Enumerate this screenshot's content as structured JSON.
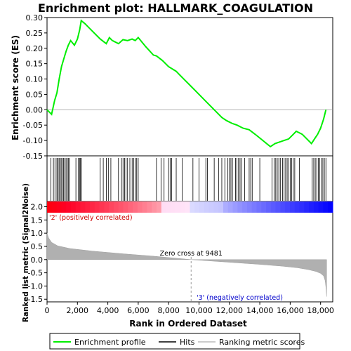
{
  "chart_data": {
    "type": "line",
    "title": "Enrichment plot: HALLMARK_COAGULATION",
    "xlabel": "Rank in Ordered Dataset",
    "ylabel_es": "Enrichment score (ES)",
    "ylabel_metric": "Ranked list metric (Signal2Noise)",
    "xlim": [
      0,
      18800
    ],
    "es_ylim": [
      -0.15,
      0.3
    ],
    "metric_ylim": [
      -1.6,
      2.2
    ],
    "x_ticks": [
      0,
      2000,
      4000,
      6000,
      8000,
      10000,
      12000,
      14000,
      16000,
      18000
    ],
    "x_tick_labels": [
      "0",
      "2,000",
      "4,000",
      "6,000",
      "8,000",
      "10,000",
      "12,000",
      "14,000",
      "16,000",
      "18,000"
    ],
    "es_ticks": [
      -0.15,
      -0.1,
      -0.05,
      0.0,
      0.05,
      0.1,
      0.15,
      0.2,
      0.25,
      0.3
    ],
    "es_tick_labels": [
      "-0.15",
      "-0.10",
      "-0.05",
      "0.00",
      "0.05",
      "0.10",
      "0.15",
      "0.20",
      "0.25",
      "0.30"
    ],
    "metric_ticks": [
      -1.5,
      -1.0,
      -0.5,
      0.0,
      0.5,
      1.0,
      1.5,
      2.0
    ],
    "metric_tick_labels": [
      "-1.5",
      "-1.0",
      "-0.5",
      "0.0",
      "0.5",
      "1.0",
      "1.5",
      "2.0"
    ],
    "enrichment_profile": {
      "x": [
        0,
        300,
        500,
        650,
        800,
        950,
        1100,
        1250,
        1400,
        1550,
        1800,
        2000,
        2150,
        2250,
        2500,
        3000,
        3500,
        3900,
        4100,
        4300,
        4700,
        5000,
        5300,
        5600,
        5800,
        6000,
        6500,
        7000,
        7200,
        7600,
        8000,
        8500,
        9000,
        9500,
        10000,
        10500,
        11000,
        11500,
        11800,
        12200,
        12500,
        12900,
        13300,
        13700,
        14200,
        14700,
        15000,
        15300,
        15600,
        15900,
        16200,
        16400,
        16800,
        17100,
        17400,
        17600,
        17800,
        18000,
        18200,
        18350
      ],
      "y": [
        0.0,
        -0.015,
        0.03,
        0.055,
        0.1,
        0.14,
        0.165,
        0.19,
        0.21,
        0.225,
        0.21,
        0.23,
        0.26,
        0.29,
        0.28,
        0.255,
        0.23,
        0.215,
        0.235,
        0.225,
        0.215,
        0.228,
        0.225,
        0.23,
        0.225,
        0.235,
        0.205,
        0.178,
        0.175,
        0.16,
        0.14,
        0.125,
        0.1,
        0.075,
        0.05,
        0.025,
        0.0,
        -0.025,
        -0.035,
        -0.045,
        -0.05,
        -0.06,
        -0.065,
        -0.08,
        -0.1,
        -0.12,
        -0.11,
        -0.105,
        -0.1,
        -0.095,
        -0.08,
        -0.07,
        -0.08,
        -0.095,
        -0.11,
        -0.095,
        -0.08,
        -0.06,
        -0.03,
        0.0
      ]
    },
    "hits_x": [
      250,
      420,
      520,
      650,
      720,
      790,
      860,
      930,
      1000,
      1080,
      1160,
      1250,
      1330,
      1400,
      1470,
      1900,
      2050,
      2150,
      2200,
      2260,
      3500,
      3700,
      3900,
      4050,
      4200,
      4700,
      4900,
      5000,
      5100,
      5200,
      5300,
      5450,
      5600,
      5700,
      5800,
      5900,
      6000,
      7200,
      7500,
      7700,
      8000,
      8100,
      8200,
      8500,
      8900,
      9600,
      10000,
      10450,
      10550,
      11000,
      11300,
      11500,
      11700,
      11900,
      12000,
      12100,
      12200,
      12400,
      12500,
      12600,
      12700,
      12800,
      13000,
      13300,
      13400,
      13500,
      14000,
      14800,
      14950,
      15050,
      15150,
      15250,
      15350,
      15500,
      15600,
      15700,
      15800,
      15900,
      16000,
      16100,
      16200,
      16300,
      16600,
      17450,
      17550,
      17650,
      17750,
      17850,
      17950,
      18050,
      18150,
      18250,
      18350
    ],
    "zero_cross_rank": 9481,
    "metric_profile": {
      "x": [
        0,
        100,
        300,
        700,
        1500,
        3000,
        5000,
        7000,
        9481,
        12000,
        14000,
        15500,
        16500,
        17200,
        17700,
        18000,
        18200,
        18300,
        18350,
        18400
      ],
      "y": [
        1.0,
        0.82,
        0.65,
        0.52,
        0.42,
        0.32,
        0.22,
        0.13,
        0.0,
        -0.1,
        -0.18,
        -0.25,
        -0.31,
        -0.38,
        -0.45,
        -0.52,
        -0.62,
        -0.8,
        -1.05,
        -1.4
      ]
    }
  },
  "annotations": {
    "zero_cross": "Zero cross at 9481",
    "positive": "'2' (positively correlated)",
    "negative": "'3' (negatively correlated)"
  },
  "legend": [
    "Enrichment profile",
    "Hits",
    "Ranking metric scores"
  ],
  "colors": {
    "profile": "#00ee00",
    "positive": "#ff0000",
    "negative": "#0000ff"
  }
}
